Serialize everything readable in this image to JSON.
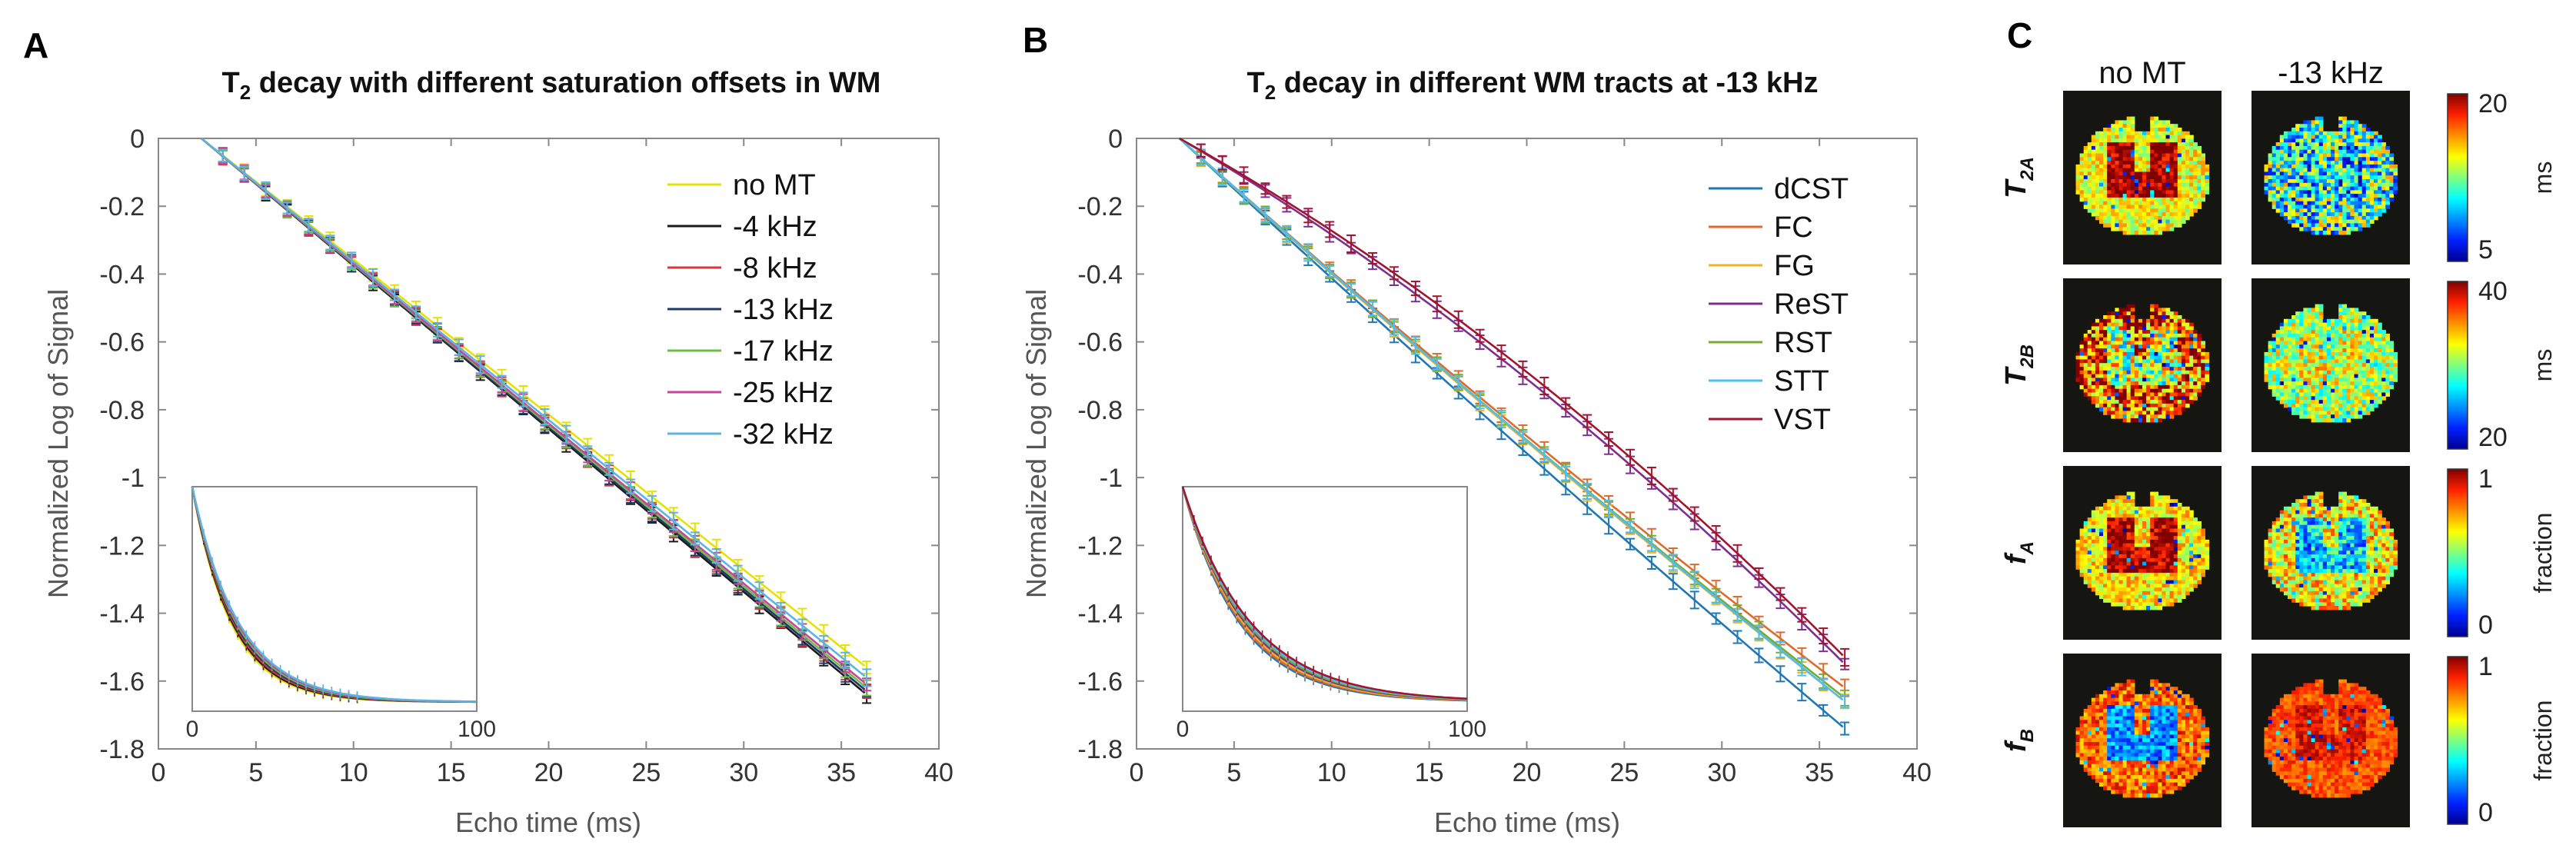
{
  "chart_data": [
    {
      "panel": "A",
      "type": "line",
      "title": "T₂ decay with different saturation offsets in WM",
      "title_main": "T",
      "title_sub": "2",
      "title_rest": " decay with different saturation offsets in WM",
      "xlabel": "Echo time (ms)",
      "ylabel": "Normalized Log of Signal",
      "xlim": [
        0,
        40
      ],
      "ylim": [
        -1.8,
        0
      ],
      "xticks": [
        0,
        5,
        10,
        15,
        20,
        25,
        30,
        35,
        40
      ],
      "yticks": [
        0,
        -0.2,
        -0.4,
        -0.6,
        -0.8,
        -1,
        -1.2,
        -1.4,
        -1.6,
        -1.8
      ],
      "x_start": 2.2,
      "x_end": 36.3,
      "echo_start": 3.3,
      "echo_step": 1.1,
      "series": [
        {
          "name": "no MT",
          "color": "#e8e000",
          "end": -1.56
        },
        {
          "name": "-4 kHz",
          "color": "#1a1a1a",
          "end": -1.64
        },
        {
          "name": "-8 kHz",
          "color": "#d9363e",
          "end": -1.63
        },
        {
          "name": "-13 kHz",
          "color": "#1f3b6e",
          "end": -1.63
        },
        {
          "name": "-17 kHz",
          "color": "#6abf45",
          "end": -1.62
        },
        {
          "name": "-25 kHz",
          "color": "#c8449a",
          "end": -1.61
        },
        {
          "name": "-32 kHz",
          "color": "#5bb5e0",
          "end": -1.59
        }
      ],
      "inset": {
        "xticks": [
          0,
          100
        ],
        "xlim": [
          0,
          100
        ],
        "tau": 15
      }
    },
    {
      "panel": "B",
      "type": "line",
      "title": "T₂ decay in different WM tracts at -13 kHz",
      "title_main": "T",
      "title_sub": "2",
      "title_rest": " decay in different WM tracts at -13 kHz",
      "xlabel": "Echo time (ms)",
      "ylabel": "Normalized Log of Signal",
      "xlim": [
        0,
        40
      ],
      "ylim": [
        -1.8,
        0
      ],
      "xticks": [
        0,
        5,
        10,
        15,
        20,
        25,
        30,
        35,
        40
      ],
      "yticks": [
        0,
        -0.2,
        -0.4,
        -0.6,
        -0.8,
        -1,
        -1.2,
        -1.4,
        -1.6,
        -1.8
      ],
      "x_start": 2.2,
      "x_end": 36.3,
      "echo_start": 3.3,
      "echo_step": 1.1,
      "series": [
        {
          "name": "dCST",
          "color": "#1f77b4",
          "end": -1.74,
          "curve": 0.05
        },
        {
          "name": "FC",
          "color": "#e06a2c",
          "end": -1.62,
          "curve": 0.08
        },
        {
          "name": "FG",
          "color": "#f0b323",
          "end": -1.66,
          "curve": 0.07
        },
        {
          "name": "ReST",
          "color": "#7e2f8e",
          "end": -1.55,
          "curve": 0.1
        },
        {
          "name": "RST",
          "color": "#77ac30",
          "end": -1.65,
          "curve": 0.07
        },
        {
          "name": "STT",
          "color": "#4dbeee",
          "end": -1.66,
          "curve": 0.06
        },
        {
          "name": "VST",
          "color": "#a2142f",
          "end": -1.53,
          "curve": 0.11
        }
      ],
      "inset": {
        "xticks": [
          0,
          100
        ],
        "xlim": [
          0,
          100
        ],
        "tau": 22
      }
    }
  ],
  "panel_c": {
    "letter": "C",
    "columns": [
      "no MT",
      "-13 kHz"
    ],
    "rows": [
      {
        "label_main": "T",
        "label_sub": "2A",
        "cb_top": "20",
        "cb_bottom": "5",
        "unit": "ms",
        "maps": [
          {
            "base": 0.62,
            "wm": 0.98,
            "noise": 0.14
          },
          {
            "base": 0.42,
            "wm": 0.35,
            "noise": 0.32
          }
        ]
      },
      {
        "label_main": "T",
        "label_sub": "2B",
        "cb_top": "40",
        "cb_bottom": "20",
        "unit": "ms",
        "maps": [
          {
            "base": 0.82,
            "wm": 0.55,
            "noise": 0.3
          },
          {
            "base": 0.55,
            "wm": 0.6,
            "noise": 0.2
          }
        ]
      },
      {
        "label_main": "f",
        "label_sub": "A",
        "cb_top": "1",
        "cb_bottom": "0",
        "unit": "fraction",
        "maps": [
          {
            "base": 0.65,
            "wm": 0.96,
            "noise": 0.14
          },
          {
            "base": 0.65,
            "wm": 0.32,
            "noise": 0.2
          }
        ]
      },
      {
        "label_main": "f",
        "label_sub": "B",
        "cb_top": "1",
        "cb_bottom": "0",
        "unit": "fraction",
        "maps": [
          {
            "base": 0.8,
            "wm": 0.25,
            "noise": 0.14
          },
          {
            "base": 0.82,
            "wm": 0.9,
            "noise": 0.08
          }
        ]
      }
    ]
  }
}
